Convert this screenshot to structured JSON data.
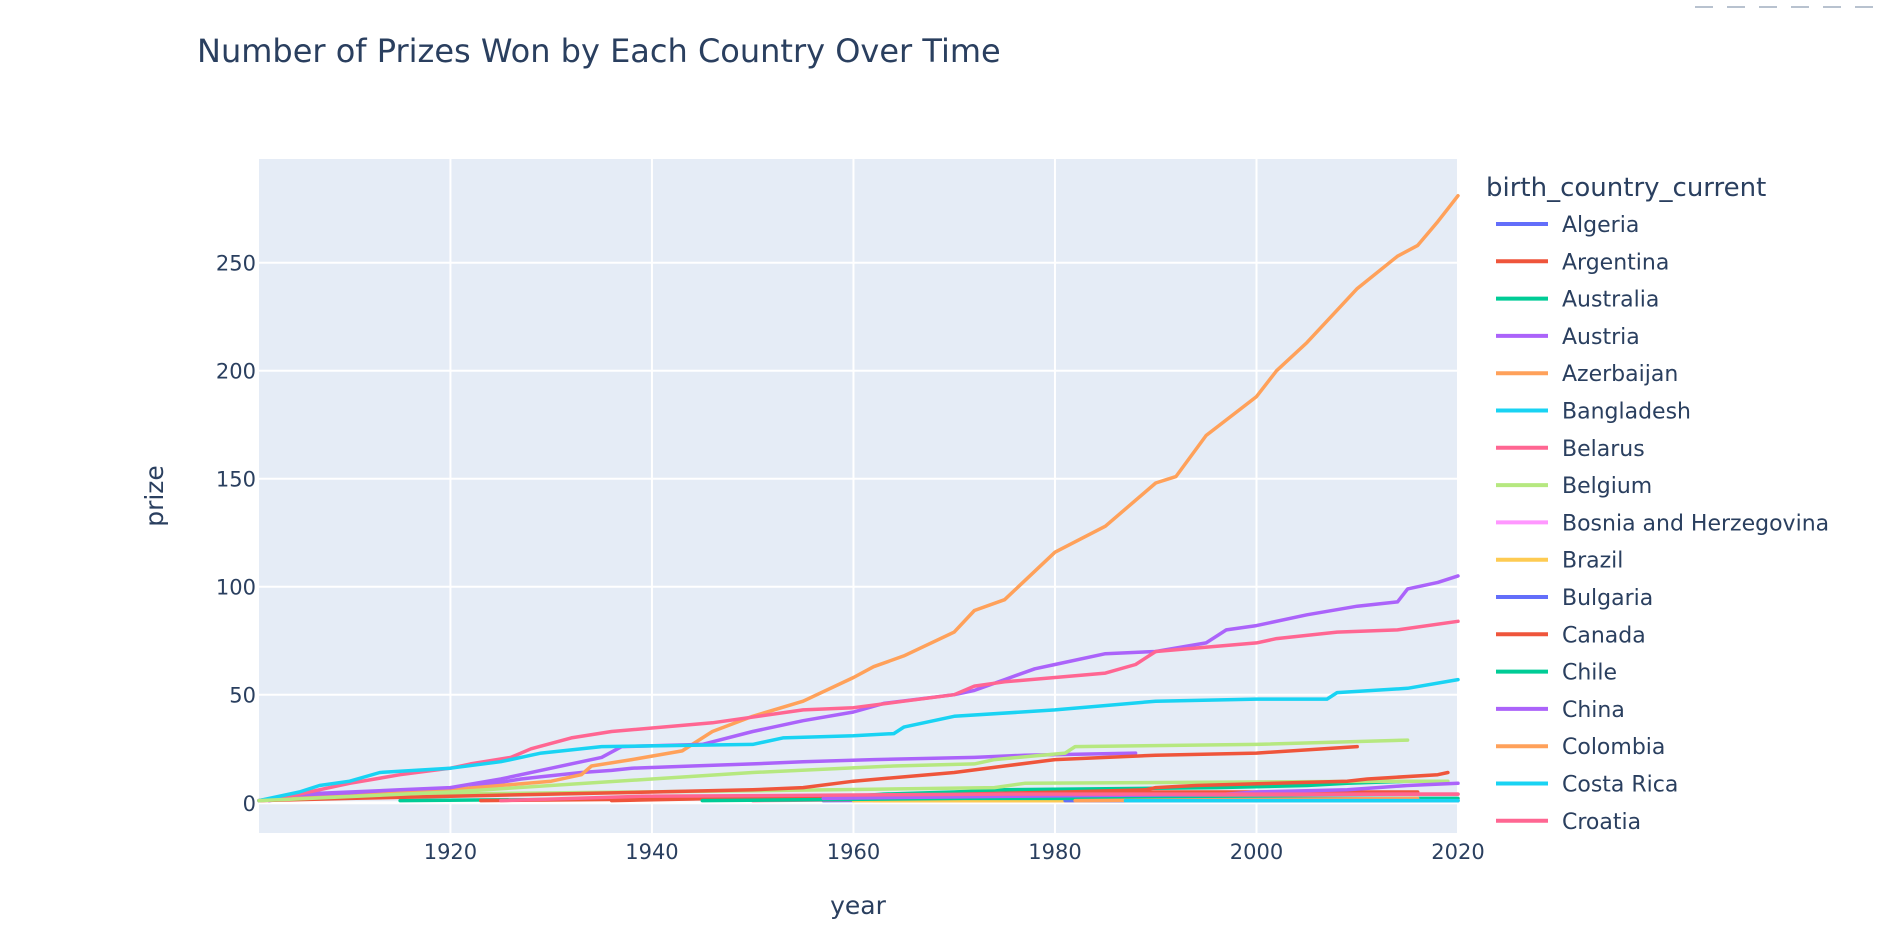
{
  "chart_data": {
    "type": "line",
    "title": "Number of Prizes Won by Each Country Over Time",
    "xlabel": "year",
    "ylabel": "prize",
    "xlim": [
      1901,
      2020
    ],
    "ylim": [
      -14,
      298
    ],
    "x_ticks": [
      1920,
      1940,
      1960,
      1980,
      2000,
      2020
    ],
    "y_ticks": [
      0,
      50,
      100,
      150,
      200,
      250
    ],
    "grid": true,
    "legend_title": "birth_country_current",
    "legend_position": "right",
    "series": [
      {
        "name": "Algeria",
        "color": "#636efa",
        "x": [
          1957,
          2014
        ],
        "y": [
          1,
          2
        ]
      },
      {
        "name": "Argentina",
        "color": "#ef553b",
        "x": [
          1936,
          1947,
          1970,
          1980,
          1984,
          2016
        ],
        "y": [
          1,
          2,
          3,
          4,
          5,
          5
        ]
      },
      {
        "name": "Australia",
        "color": "#00cc96",
        "x": [
          1915,
          1945,
          1960,
          1963,
          1970,
          1975,
          1996,
          2005,
          2009,
          2015
        ],
        "y": [
          1,
          2,
          3,
          4,
          5,
          6,
          7,
          8,
          9,
          10
        ]
      },
      {
        "name": "Austria",
        "color": "#ab63fa",
        "x": [
          1902,
          1905,
          1911,
          1914,
          1921,
          1923,
          1927,
          1929,
          1933,
          1936,
          1938,
          1944,
          1950,
          1955,
          1962,
          1972,
          1977,
          1988
        ],
        "y": [
          1,
          3,
          4,
          5,
          6,
          8,
          11,
          12,
          14,
          15,
          16,
          17,
          18,
          19,
          20,
          21,
          22,
          23
        ]
      },
      {
        "name": "Azerbaijan",
        "color": "#ffa15a",
        "x": [
          1962,
          2016
        ],
        "y": [
          1,
          1
        ]
      },
      {
        "name": "Bangladesh",
        "color": "#19d3f3",
        "x": [
          2006,
          2016
        ],
        "y": [
          1,
          1
        ]
      },
      {
        "name": "Belarus",
        "color": "#ff6692",
        "x": [
          1950,
          1977,
          1978,
          2015,
          2020
        ],
        "y": [
          1,
          2,
          3,
          4,
          4
        ]
      },
      {
        "name": "Belgium",
        "color": "#b6e880",
        "x": [
          1909,
          1911,
          1919,
          1938,
          1958,
          1974,
          1977,
          2013,
          2019
        ],
        "y": [
          2,
          3,
          4,
          5,
          6,
          7,
          9,
          10,
          10
        ]
      },
      {
        "name": "Bosnia and Herzegovina",
        "color": "#ff97ff",
        "x": [
          1961,
          1975,
          2020
        ],
        "y": [
          1,
          2,
          2
        ]
      },
      {
        "name": "Brazil",
        "color": "#fecb52",
        "x": [
          1960,
          2020
        ],
        "y": [
          1,
          1
        ]
      },
      {
        "name": "Bulgaria",
        "color": "#636efa",
        "x": [
          1981,
          2020
        ],
        "y": [
          1,
          1
        ]
      },
      {
        "name": "Canada",
        "color": "#ef553b",
        "x": [
          1923,
          1949,
          1966,
          1971,
          1981,
          1989,
          1990,
          1994,
          2009,
          2011,
          2018,
          2019
        ],
        "y": [
          1,
          2,
          3,
          4,
          5,
          6,
          7,
          8,
          10,
          11,
          13,
          14
        ]
      },
      {
        "name": "Chile",
        "color": "#00cc96",
        "x": [
          1945,
          1971,
          2020
        ],
        "y": [
          1,
          2,
          2
        ]
      },
      {
        "name": "China",
        "color": "#ab63fa",
        "x": [
          1957,
          1976,
          1997,
          2000,
          2009,
          2012,
          2015,
          2020
        ],
        "y": [
          2,
          3,
          4,
          5,
          6,
          7,
          8,
          9
        ]
      },
      {
        "name": "Colombia",
        "color": "#ffa15a",
        "x": [
          1982,
          2016
        ],
        "y": [
          1,
          2
        ]
      },
      {
        "name": "Costa Rica",
        "color": "#19d3f3",
        "x": [
          1987,
          2020
        ],
        "y": [
          1,
          1
        ]
      },
      {
        "name": "Croatia",
        "color": "#ff6692",
        "x": [
          1925,
          1939,
          1975,
          2020
        ],
        "y": [
          1,
          3,
          4,
          4
        ]
      },
      {
        "name": "",
        "color": "#ffa15a",
        "x": [
          1901,
          1905,
          1910,
          1920,
          1930,
          1933,
          1934,
          1938,
          1943,
          1946,
          1950,
          1955,
          1960,
          1962,
          1965,
          1970,
          1972,
          1975,
          1980,
          1985,
          1990,
          1992,
          1995,
          2000,
          2002,
          2005,
          2008,
          2010,
          2014,
          2016,
          2018,
          2019,
          2020
        ],
        "y": [
          1,
          2,
          3,
          6,
          10,
          13,
          17,
          20,
          24,
          33,
          40,
          47,
          58,
          63,
          68,
          79,
          89,
          94,
          116,
          128,
          148,
          151,
          170,
          188,
          200,
          213,
          228,
          238,
          253,
          258,
          269,
          275,
          281
        ]
      },
      {
        "name": "",
        "color": "#ab63fa",
        "x": [
          1901,
          1905,
          1910,
          1915,
          1920,
          1925,
          1930,
          1935,
          1937,
          1945,
          1950,
          1955,
          1960,
          1963,
          1970,
          1972,
          1975,
          1978,
          1980,
          1985,
          1990,
          1995,
          1997,
          2000,
          2005,
          2010,
          2014,
          2015,
          2018,
          2020
        ],
        "y": [
          1,
          4,
          5,
          6,
          7,
          11,
          16,
          21,
          26,
          27,
          33,
          38,
          42,
          46,
          50,
          52,
          57,
          62,
          64,
          69,
          70,
          74,
          80,
          82,
          87,
          91,
          93,
          99,
          102,
          105
        ]
      },
      {
        "name": "",
        "color": "#ef553b",
        "x": [
          1901,
          1910,
          1920,
          1930,
          1940,
          1950,
          1955,
          1960,
          1970,
          1975,
          1980,
          1990,
          2000,
          2010
        ],
        "y": [
          1,
          2,
          3,
          4,
          5,
          6,
          7,
          10,
          14,
          17,
          20,
          22,
          23,
          26
        ]
      },
      {
        "name": "",
        "color": "#ff6692",
        "x": [
          1901,
          1905,
          1910,
          1915,
          1920,
          1922,
          1926,
          1928,
          1932,
          1936,
          1946,
          1955,
          1960,
          1965,
          1970,
          1972,
          1975,
          1980,
          1985,
          1988,
          1990,
          2000,
          2002,
          2008,
          2014,
          2020
        ],
        "y": [
          1,
          4,
          9,
          13,
          16,
          18,
          21,
          25,
          30,
          33,
          37,
          43,
          44,
          47,
          50,
          54,
          56,
          58,
          60,
          64,
          70,
          74,
          76,
          79,
          80,
          84
        ]
      },
      {
        "name": "",
        "color": "#19d3f3",
        "x": [
          1901,
          1905,
          1907,
          1910,
          1913,
          1920,
          1925,
          1929,
          1935,
          1950,
          1953,
          1960,
          1964,
          1965,
          1970,
          1980,
          1990,
          2000,
          2007,
          2008,
          2015,
          2020
        ],
        "y": [
          1,
          5,
          8,
          10,
          14,
          16,
          19,
          23,
          26,
          27,
          30,
          31,
          32,
          35,
          40,
          43,
          47,
          48,
          48,
          51,
          53,
          57
        ]
      },
      {
        "name": "",
        "color": "#b6e880",
        "x": [
          1901,
          1920,
          1940,
          1950,
          1964,
          1972,
          1974,
          1981,
          1982,
          2000,
          2015
        ],
        "y": [
          1,
          5,
          11,
          14,
          17,
          18,
          20,
          23,
          26,
          27,
          29
        ]
      }
    ]
  }
}
